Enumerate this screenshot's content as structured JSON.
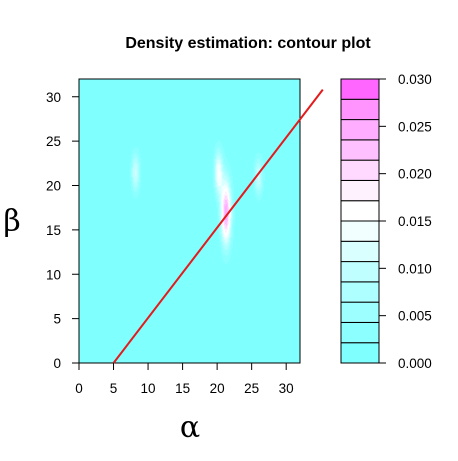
{
  "chart_data": {
    "type": "heatmap",
    "title": "Density estimation: contour plot",
    "xlabel": "α",
    "ylabel": "β",
    "xlim": [
      0,
      32
    ],
    "ylim": [
      0,
      32
    ],
    "x_ticks": [
      "0",
      "5",
      "10",
      "15",
      "20",
      "25",
      "30"
    ],
    "y_ticks": [
      "0",
      "5",
      "10",
      "15",
      "20",
      "25",
      "30"
    ],
    "x_tick_values": [
      0,
      5,
      10,
      15,
      20,
      25,
      30
    ],
    "y_tick_values": [
      0,
      5,
      10,
      15,
      20,
      25,
      30
    ],
    "colorbar": {
      "range": [
        0,
        0.03
      ],
      "tick_labels": [
        "0.000",
        "0.005",
        "0.010",
        "0.015",
        "0.020",
        "0.025",
        "0.030"
      ],
      "tick_values": [
        0,
        0.005,
        0.01,
        0.015,
        0.02,
        0.025,
        0.03
      ],
      "levels": 14,
      "colors": [
        "#80ffff",
        "#8cffff",
        "#9dffff",
        "#aeffff",
        "#c0ffff",
        "#d9ffff",
        "#f2ffff",
        "#ffffff",
        "#fff2ff",
        "#ffd9ff",
        "#ffc0ff",
        "#ffadff",
        "#ff94ff",
        "#ff66ff"
      ]
    },
    "density_peaks": [
      {
        "x": 8.2,
        "y": 21.5,
        "sx": 0.45,
        "sy": 1.6,
        "value": 0.011
      },
      {
        "x": 20.2,
        "y": 21.5,
        "sx": 0.45,
        "sy": 1.8,
        "value": 0.015
      },
      {
        "x": 21.3,
        "y": 17.0,
        "sx": 0.55,
        "sy": 2.6,
        "value": 0.025
      },
      {
        "x": 26.0,
        "y": 21.0,
        "sx": 0.45,
        "sy": 1.5,
        "value": 0.011
      }
    ],
    "line": {
      "color": "#e41a1c",
      "points": [
        [
          5,
          0
        ],
        [
          35.3,
          30.8
        ]
      ]
    }
  }
}
